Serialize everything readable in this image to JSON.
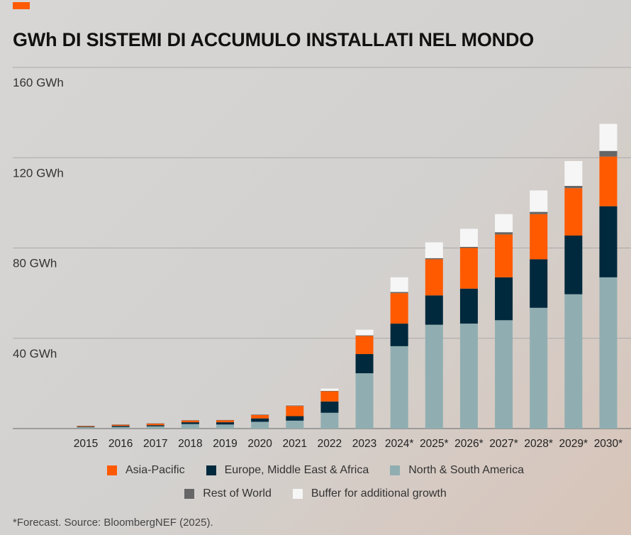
{
  "header": {
    "title": "GWh DI SISTEMI DI ACCUMULO INSTALLATI NEL MONDO"
  },
  "colors": {
    "accent": "#ff5a00",
    "asia_pacific": "#ff5a00",
    "emea": "#00293d",
    "americas": "#90aeb1",
    "rest_of_world": "#666666",
    "buffer": "#f6f6f6",
    "grid": "#a9a9a9"
  },
  "chart_data": {
    "type": "bar",
    "stacked": true,
    "title": "GWh DI SISTEMI DI ACCUMULO INSTALLATI NEL MONDO",
    "categories": [
      "2015",
      "2016",
      "2017",
      "2018",
      "2019",
      "2020",
      "2021",
      "2022",
      "2023",
      "2024*",
      "2025*",
      "2026*",
      "2027*",
      "2028*",
      "2029*",
      "2030*"
    ],
    "yticks": [
      "40 GWh",
      "80 GWh",
      "120 GWh",
      "160 GWh"
    ],
    "ytick_values": [
      40,
      80,
      120,
      160
    ],
    "ylim": [
      0,
      160
    ],
    "grid": true,
    "legend_position": "bottom",
    "series": [
      {
        "name": "North & South America",
        "color": "#90aeb1",
        "values": [
          0.6,
          0.7,
          1.0,
          2.0,
          1.8,
          3.0,
          3.5,
          7.0,
          24.5,
          36.5,
          46.0,
          46.5,
          48.0,
          53.5,
          59.5,
          67.0
        ]
      },
      {
        "name": "Europe, Middle East & Africa",
        "color": "#00293d",
        "values": [
          0.2,
          0.5,
          0.5,
          0.8,
          1.0,
          1.5,
          2.0,
          5.0,
          8.5,
          10.0,
          13.0,
          15.5,
          19.0,
          21.5,
          26.0,
          31.5
        ]
      },
      {
        "name": "Asia-Pacific",
        "color": "#ff5a00",
        "values": [
          0.3,
          0.5,
          0.7,
          0.8,
          0.9,
          1.5,
          4.5,
          4.5,
          8.0,
          13.5,
          16.0,
          18.0,
          19.0,
          20.0,
          21.0,
          22.0
        ]
      },
      {
        "name": "Rest of World",
        "color": "#666666",
        "values": [
          0.1,
          0.1,
          0.1,
          0.1,
          0.1,
          0.2,
          0.3,
          0.2,
          0.3,
          0.5,
          0.5,
          0.5,
          1.0,
          1.0,
          1.0,
          2.5
        ]
      },
      {
        "name": "Buffer for additional growth",
        "color": "#f6f6f6",
        "values": [
          0,
          0,
          0,
          0,
          0,
          0,
          0.2,
          1.0,
          2.5,
          6.5,
          7.0,
          8.0,
          8.0,
          9.5,
          11.0,
          12.0
        ]
      }
    ]
  },
  "legend": {
    "row1": [
      "Asia-Pacific",
      "Europe, Middle East & Africa",
      "North & South America"
    ],
    "row2": [
      "Rest of World",
      "Buffer for additional growth"
    ]
  },
  "footnote": "*Forecast. Source: BloombergNEF (2025)."
}
